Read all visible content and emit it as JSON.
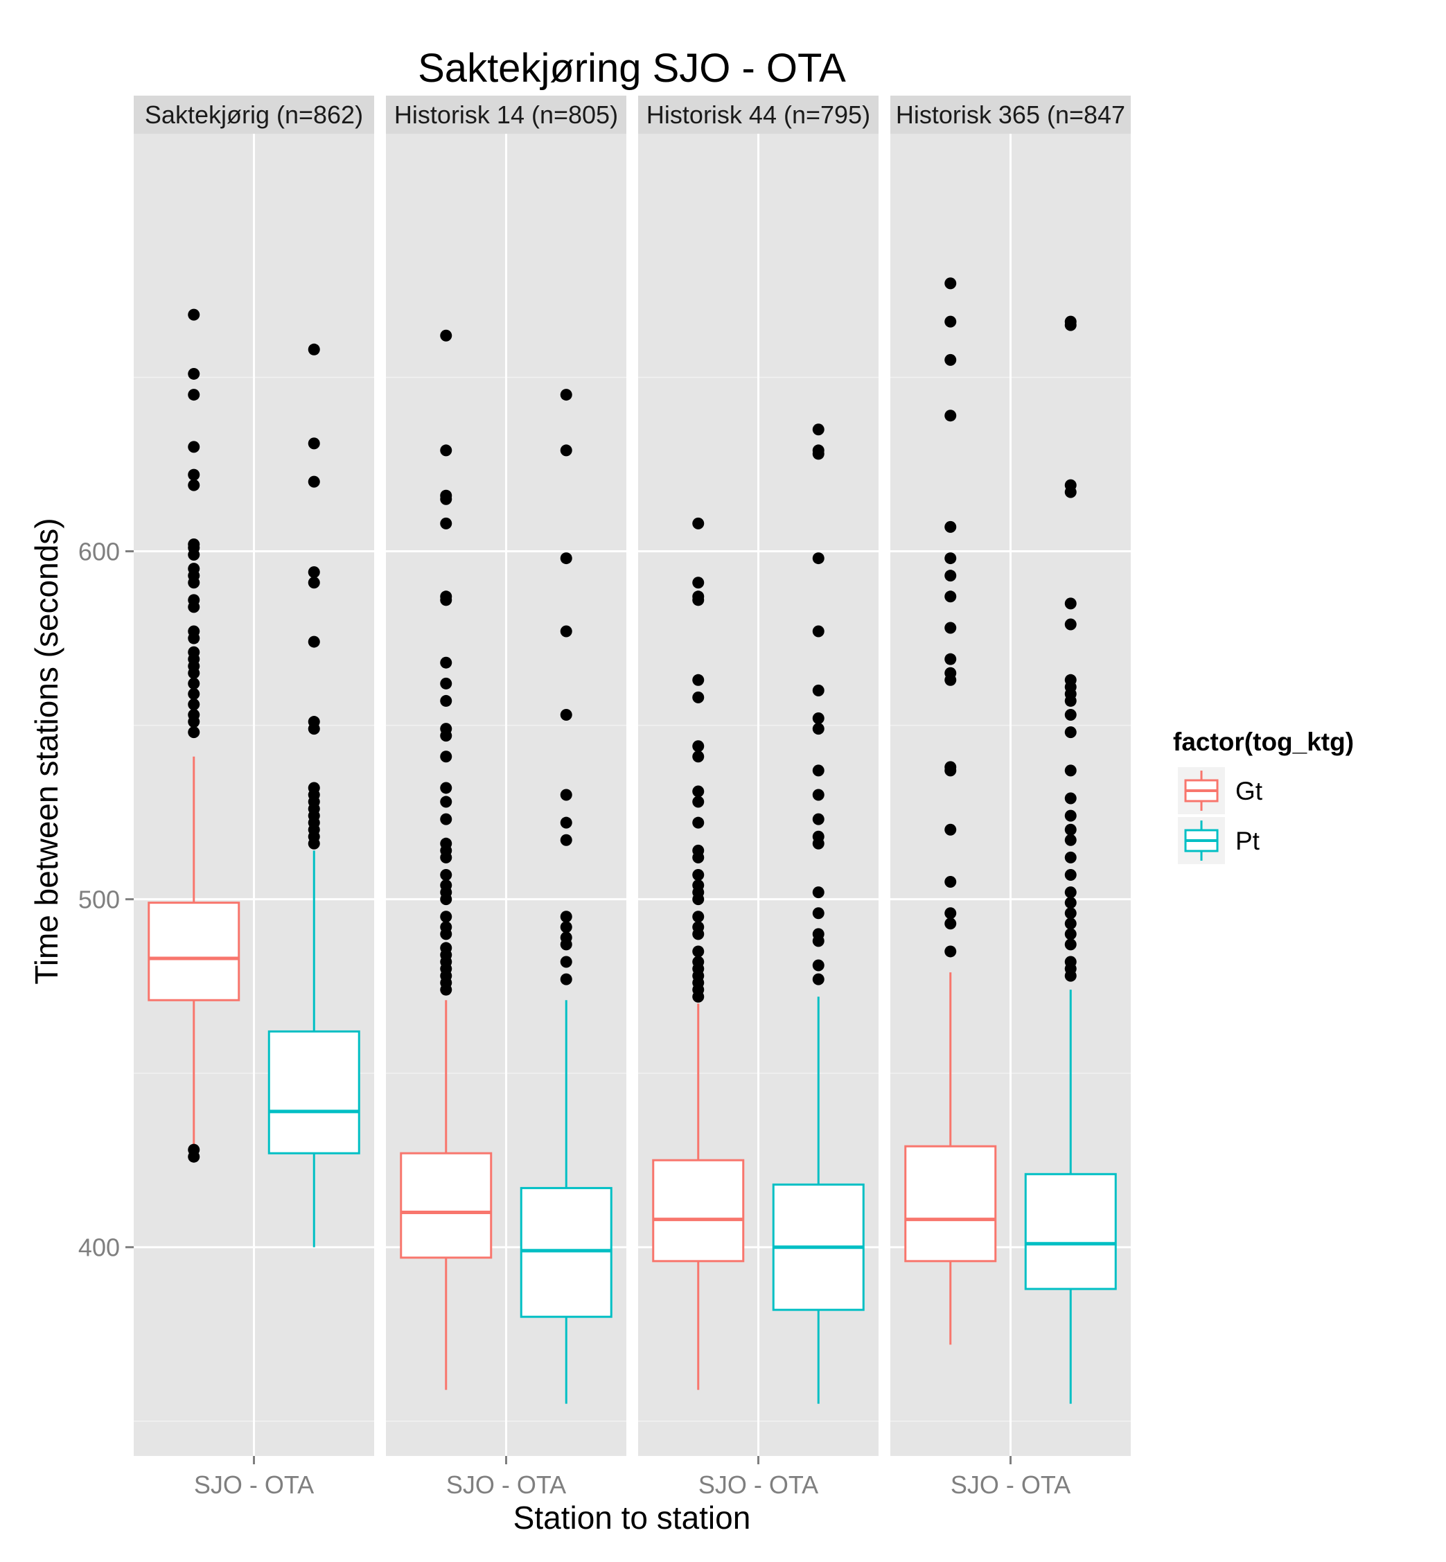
{
  "chart_data": {
    "type": "boxplot",
    "title": "Saktekjøring SJO - OTA",
    "xlabel": "Station to station",
    "ylabel": "Time between stations (seconds)",
    "ylim": [
      340,
      720
    ],
    "y_ticks": [
      400,
      500,
      600
    ],
    "x_tick_label": "SJO - OTA",
    "grid": true,
    "legend": {
      "title": "factor(tog_ktg)",
      "position": "right",
      "entries": [
        {
          "label": "Gt",
          "color": "#F8766D"
        },
        {
          "label": "Pt",
          "color": "#00BFC4"
        }
      ]
    },
    "facets": [
      {
        "label": "Saktekjørig (n=862)",
        "boxes": [
          {
            "group": "Gt",
            "lower_whisker": 427,
            "q1": 471,
            "median": 483,
            "q3": 499,
            "upper_whisker": 541,
            "outliers": [
              428,
              426,
              548,
              551,
              553,
              556,
              559,
              562,
              565,
              567,
              569,
              571,
              575,
              577,
              584,
              586,
              591,
              593,
              595,
              599,
              601,
              602,
              619,
              622,
              630,
              645,
              651,
              668
            ]
          },
          {
            "group": "Pt",
            "lower_whisker": 400,
            "q1": 427,
            "median": 439,
            "q3": 462,
            "upper_whisker": 514,
            "outliers": [
              516,
              518,
              520,
              522,
              524,
              526,
              528,
              530,
              532,
              549,
              551,
              574,
              591,
              594,
              620,
              631,
              658
            ]
          }
        ]
      },
      {
        "label": "Historisk 14 (n=805)",
        "boxes": [
          {
            "group": "Gt",
            "lower_whisker": 359,
            "q1": 397,
            "median": 410,
            "q3": 427,
            "upper_whisker": 471,
            "outliers": [
              474,
              476,
              478,
              480,
              482,
              484,
              486,
              490,
              492,
              495,
              500,
              502,
              504,
              507,
              512,
              514,
              516,
              523,
              528,
              532,
              541,
              547,
              549,
              557,
              562,
              568,
              586,
              587,
              608,
              615,
              616,
              629,
              662
            ]
          },
          {
            "group": "Pt",
            "lower_whisker": 355,
            "q1": 380,
            "median": 399,
            "q3": 417,
            "upper_whisker": 471,
            "outliers": [
              477,
              482,
              487,
              489,
              492,
              495,
              517,
              522,
              530,
              553,
              577,
              598,
              629,
              645
            ]
          }
        ]
      },
      {
        "label": "Historisk 44 (n=795)",
        "boxes": [
          {
            "group": "Gt",
            "lower_whisker": 359,
            "q1": 396,
            "median": 408,
            "q3": 425,
            "upper_whisker": 470,
            "outliers": [
              472,
              474,
              476,
              478,
              480,
              482,
              485,
              490,
              492,
              495,
              500,
              502,
              504,
              507,
              512,
              514,
              522,
              528,
              531,
              541,
              544,
              558,
              563,
              586,
              587,
              591,
              608
            ]
          },
          {
            "group": "Pt",
            "lower_whisker": 355,
            "q1": 382,
            "median": 400,
            "q3": 418,
            "upper_whisker": 472,
            "outliers": [
              477,
              481,
              488,
              490,
              496,
              502,
              516,
              518,
              523,
              530,
              537,
              549,
              552,
              560,
              577,
              598,
              628,
              629,
              635
            ]
          }
        ]
      },
      {
        "label": "Historisk 365 (n=847",
        "boxes": [
          {
            "group": "Gt",
            "lower_whisker": 372,
            "q1": 396,
            "median": 408,
            "q3": 429,
            "upper_whisker": 479,
            "outliers": [
              485,
              493,
              496,
              505,
              520,
              537,
              538,
              563,
              565,
              569,
              578,
              587,
              593,
              598,
              607,
              639,
              655,
              666,
              677
            ]
          },
          {
            "group": "Pt",
            "lower_whisker": 355,
            "q1": 388,
            "median": 401,
            "q3": 421,
            "upper_whisker": 474,
            "outliers": [
              478,
              480,
              482,
              487,
              490,
              493,
              496,
              499,
              502,
              507,
              512,
              517,
              520,
              524,
              529,
              537,
              548,
              553,
              557,
              559,
              561,
              563,
              579,
              585,
              617,
              619,
              665,
              666
            ]
          }
        ]
      }
    ]
  }
}
